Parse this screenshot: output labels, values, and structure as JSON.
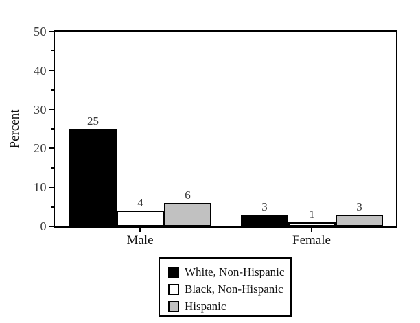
{
  "chart_data": {
    "type": "bar",
    "title": "",
    "xlabel": "",
    "ylabel": "Percent",
    "categories": [
      "Male",
      "Female"
    ],
    "series": [
      {
        "name": "White, Non-Hispanic",
        "color": "#000000",
        "values": [
          25,
          3
        ]
      },
      {
        "name": "Black, Non-Hispanic",
        "color": "#ffffff",
        "values": [
          4,
          1
        ]
      },
      {
        "name": "Hispanic",
        "color": "#c1c1c1",
        "values": [
          6,
          3
        ]
      }
    ],
    "ylim": [
      0,
      50
    ],
    "yticks_major": [
      0,
      10,
      20,
      30,
      40,
      50
    ],
    "yticks_minor": [
      5,
      15,
      25,
      35,
      45
    ],
    "grid": false,
    "bar_value_labels": true,
    "legend_position": "bottom-center",
    "colors": {
      "axis": "#000000",
      "bar_border": "#000000",
      "number_text": "#3a3a3a",
      "label_text": "#121212",
      "background": "#ffffff"
    }
  }
}
